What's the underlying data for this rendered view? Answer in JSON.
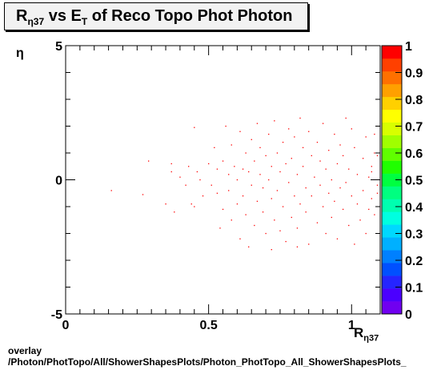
{
  "title": {
    "main": "R",
    "sub": "η37",
    "mid": " vs E",
    "sub2": "T",
    "rest": " of Reco Topo Phot Photon"
  },
  "axes": {
    "ylabel": "η",
    "xlabel_main": "R",
    "xlabel_sub": "η37"
  },
  "footer": {
    "line1": "overlay",
    "line2": "/Photon/PhotTopo/All/ShowerShapesPlots/Photon_PhotTopo_All_ShowerShapesPlots_"
  },
  "chart_data": {
    "type": "scatter",
    "xlim": [
      0,
      1.1
    ],
    "ylim": [
      -5,
      5
    ],
    "xticks": [
      "0",
      "0.5",
      "1"
    ],
    "yticks": [
      "-5",
      "0",
      "5"
    ],
    "marker_color": "#ff0000",
    "colorbar": {
      "ticks": [
        "0",
        "0.1",
        "0.2",
        "0.3",
        "0.4",
        "0.5",
        "0.6",
        "0.7",
        "0.8",
        "0.9",
        "1"
      ],
      "colors": [
        "#7000f0",
        "#4b00ff",
        "#2525ff",
        "#0050ff",
        "#0080ff",
        "#00b0ff",
        "#00d8ff",
        "#00ffe0",
        "#00ffb0",
        "#00ff80",
        "#00ff40",
        "#20ff00",
        "#60ff00",
        "#a0ff00",
        "#d8ff00",
        "#ffff00",
        "#ffd000",
        "#ffa000",
        "#ff7000",
        "#ff4000",
        "#ff0000"
      ]
    },
    "points": [
      [
        0.16,
        -0.4
      ],
      [
        0.27,
        -0.55
      ],
      [
        0.29,
        0.7
      ],
      [
        0.35,
        -0.9
      ],
      [
        0.37,
        0.6
      ],
      [
        0.38,
        -1.2
      ],
      [
        0.37,
        0.3
      ],
      [
        0.4,
        0.1
      ],
      [
        0.42,
        -0.2
      ],
      [
        0.43,
        0.5
      ],
      [
        0.45,
        1.95
      ],
      [
        0.45,
        -1.0
      ],
      [
        0.46,
        0.3
      ],
      [
        0.47,
        0.0
      ],
      [
        0.48,
        -0.6
      ],
      [
        0.5,
        0.6
      ],
      [
        0.51,
        -0.2
      ],
      [
        0.52,
        1.2
      ],
      [
        0.53,
        0.4
      ],
      [
        0.53,
        -0.5
      ],
      [
        0.54,
        -1.8
      ],
      [
        0.55,
        0.7
      ],
      [
        0.55,
        -1.1
      ],
      [
        0.56,
        2.0
      ],
      [
        0.57,
        0.2
      ],
      [
        0.57,
        -0.4
      ],
      [
        0.58,
        -1.5
      ],
      [
        0.58,
        1.3
      ],
      [
        0.59,
        0.5
      ],
      [
        0.6,
        -0.9
      ],
      [
        0.6,
        0.0
      ],
      [
        0.61,
        1.8
      ],
      [
        0.61,
        -2.2
      ],
      [
        0.62,
        0.4
      ],
      [
        0.62,
        -0.6
      ],
      [
        0.63,
        -1.3
      ],
      [
        0.63,
        1.0
      ],
      [
        0.64,
        0.3
      ],
      [
        0.64,
        -2.5
      ],
      [
        0.65,
        1.5
      ],
      [
        0.65,
        -0.2
      ],
      [
        0.66,
        0.7
      ],
      [
        0.66,
        -1.7
      ],
      [
        0.67,
        2.1
      ],
      [
        0.67,
        -0.8
      ],
      [
        0.68,
        0.2
      ],
      [
        0.68,
        1.2
      ],
      [
        0.69,
        -1.2
      ],
      [
        0.69,
        -0.3
      ],
      [
        0.7,
        0.9
      ],
      [
        0.7,
        -2.0
      ],
      [
        0.71,
        1.7
      ],
      [
        0.71,
        0.0
      ],
      [
        0.72,
        -0.7
      ],
      [
        0.72,
        0.5
      ],
      [
        0.73,
        -1.5
      ],
      [
        0.73,
        2.2
      ],
      [
        0.74,
        1.0
      ],
      [
        0.74,
        -0.4
      ],
      [
        0.75,
        -1.9
      ],
      [
        0.75,
        0.3
      ],
      [
        0.76,
        1.4
      ],
      [
        0.76,
        -1.0
      ],
      [
        0.77,
        0.6
      ],
      [
        0.77,
        -2.3
      ],
      [
        0.78,
        1.9
      ],
      [
        0.78,
        -0.1
      ],
      [
        0.79,
        -1.4
      ],
      [
        0.79,
        0.8
      ],
      [
        0.8,
        -0.6
      ],
      [
        0.8,
        1.6
      ],
      [
        0.81,
        0.2
      ],
      [
        0.81,
        -1.8
      ],
      [
        0.82,
        2.3
      ],
      [
        0.82,
        -0.9
      ],
      [
        0.83,
        0.5
      ],
      [
        0.83,
        1.2
      ],
      [
        0.84,
        -1.2
      ],
      [
        0.84,
        -0.3
      ],
      [
        0.85,
        1.8
      ],
      [
        0.85,
        -2.4
      ],
      [
        0.86,
        0.9
      ],
      [
        0.86,
        -0.6
      ],
      [
        0.87,
        0.1
      ],
      [
        0.88,
        1.4
      ],
      [
        0.88,
        -1.6
      ],
      [
        0.89,
        -0.2
      ],
      [
        0.89,
        0.7
      ],
      [
        0.9,
        -1.0
      ],
      [
        0.9,
        2.1
      ],
      [
        0.91,
        0.4
      ],
      [
        0.91,
        -2.0
      ],
      [
        0.92,
        1.1
      ],
      [
        0.92,
        -0.5
      ],
      [
        0.93,
        -1.4
      ],
      [
        0.93,
        0.0
      ],
      [
        0.94,
        1.7
      ],
      [
        0.94,
        -0.8
      ],
      [
        0.95,
        0.6
      ],
      [
        0.95,
        -2.2
      ],
      [
        0.96,
        -0.3
      ],
      [
        0.96,
        1.3
      ],
      [
        0.97,
        0.9
      ],
      [
        0.97,
        -1.1
      ],
      [
        0.98,
        2.3
      ],
      [
        0.98,
        -0.1
      ],
      [
        0.99,
        0.4
      ],
      [
        0.99,
        -1.7
      ],
      [
        1.0,
        -0.6
      ],
      [
        1.0,
        1.9
      ],
      [
        1.01,
        1.2
      ],
      [
        1.01,
        -2.4
      ],
      [
        1.02,
        0.2
      ],
      [
        1.02,
        -0.9
      ],
      [
        1.03,
        -1.5
      ],
      [
        1.04,
        0.8
      ],
      [
        1.04,
        -0.4
      ],
      [
        1.05,
        1.6
      ],
      [
        1.05,
        -2.0
      ],
      [
        1.06,
        0.1
      ],
      [
        1.06,
        -1.1
      ],
      [
        1.07,
        0.5
      ],
      [
        1.07,
        -0.7
      ],
      [
        1.08,
        1.0
      ],
      [
        1.08,
        -1.3
      ],
      [
        1.09,
        -0.2
      ],
      [
        1.09,
        0.9
      ],
      [
        1.08,
        1.7
      ],
      [
        1.09,
        -0.5
      ],
      [
        1.07,
        0.3
      ],
      [
        0.44,
        -0.9
      ],
      [
        0.72,
        -2.6
      ],
      [
        0.81,
        -2.5
      ]
    ]
  }
}
